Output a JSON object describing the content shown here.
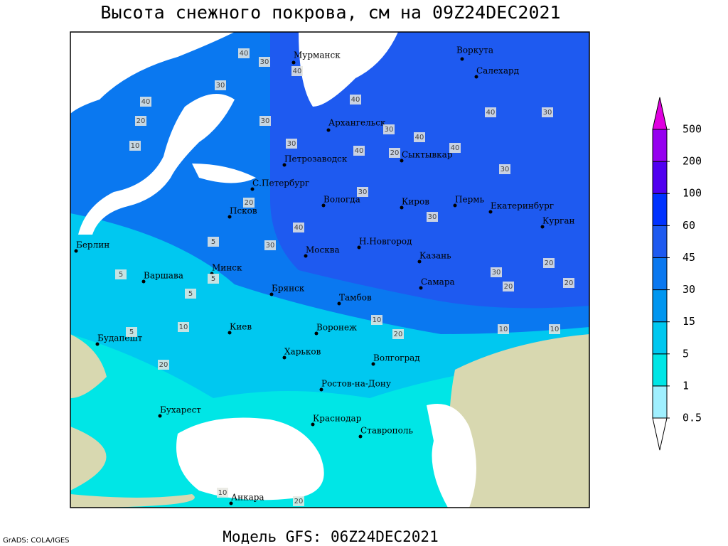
{
  "title": "Высота снежного покрова, см на 09Z24DEC2021",
  "footer": "Модель GFS: 06Z24DEC2021",
  "credit": "GrADS: COLA/IGES",
  "legend": {
    "ticks": [
      0.5,
      1,
      5,
      15,
      30,
      45,
      60,
      100,
      200,
      500
    ],
    "colors": [
      "#ffffff",
      "#a0f0ff",
      "#00e6e6",
      "#00c8f0",
      "#0096f0",
      "#0a78f0",
      "#1e5af0",
      "#0032ff",
      "#5000f0",
      "#9600f0",
      "#e000e0"
    ]
  },
  "cities": [
    "Мурманск",
    "Воркута",
    "Салехард",
    "Архангельск",
    "Сыктывкар",
    "Петрозаводск",
    "С.Петербург",
    "Вологда",
    "Киров",
    "Пермь",
    "Екатеринбург",
    "Курган",
    "Псков",
    "Берлин",
    "Москва",
    "Н.Новгород",
    "Казань",
    "Варшава",
    "Минск",
    "Брянск",
    "Тамбов",
    "Самара",
    "Киев",
    "Воронеж",
    "Будапешт",
    "Харьков",
    "Волгоград",
    "Ростов-на-Дону",
    "Бухарест",
    "Краснодар",
    "Ставрополь",
    "Анкара"
  ],
  "contour_labels": [
    40,
    30,
    40,
    30,
    40,
    40,
    30,
    20,
    10,
    30,
    40,
    40,
    30,
    40,
    30,
    20,
    5,
    40,
    30,
    30,
    20,
    30,
    5,
    5,
    10,
    5,
    10,
    20,
    10,
    20,
    20,
    10,
    5,
    20,
    40,
    30,
    30,
    20,
    10,
    20
  ]
}
